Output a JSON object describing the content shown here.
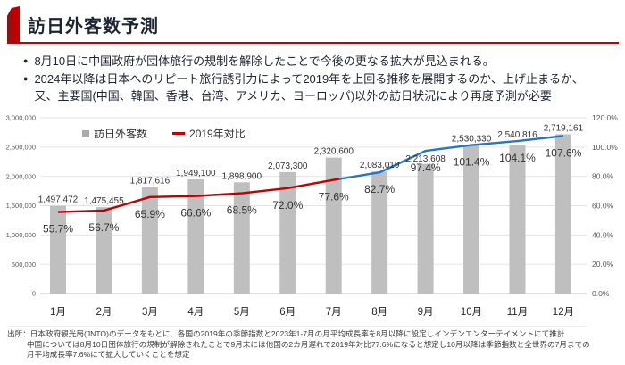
{
  "header": {
    "title": "訪日外客数予測"
  },
  "bullets": [
    {
      "lines": [
        "8月10日に中国政府が団体旅行の規制を解除したことで今後の更なる拡大が見込まれる。"
      ]
    },
    {
      "lines": [
        "2024年以降は日本へのリピート旅行誘引力によって2019年を上回る推移を展開するのか、上げ止まるか、",
        "又、主要国(中国、韓国、香港、台湾、アメリカ、ヨーロッパ)以外の訪日状況により再度予測が必要"
      ]
    }
  ],
  "chart_data": {
    "type": "bar+line",
    "categories": [
      "1月",
      "2月",
      "3月",
      "4月",
      "5月",
      "6月",
      "7月",
      "8月",
      "9月",
      "10月",
      "11月",
      "12月"
    ],
    "series": [
      {
        "name": "訪日外客数",
        "type": "bar",
        "axis": "left",
        "values": [
          1497472,
          1475455,
          1817616,
          1949100,
          1898900,
          2073300,
          2320600,
          2083019,
          2213608,
          2530330,
          2540816,
          2719161
        ]
      },
      {
        "name": "2019年対比",
        "type": "line",
        "axis": "right",
        "values_percent": [
          55.7,
          56.7,
          65.9,
          66.6,
          68.5,
          72.0,
          77.6,
          82.7,
          97.4,
          101.4,
          104.1,
          107.6
        ],
        "color_jan_to_jul": "#c00000",
        "color_aug_to_dec": "#2675c5"
      }
    ],
    "left_axis": {
      "min": 0,
      "max": 3000000,
      "step": 500000,
      "tick_labels": [
        "3,000,000",
        "2,500,000",
        "2,000,000",
        "1,500,000",
        "1,000,000",
        "500,000",
        "0"
      ]
    },
    "right_axis": {
      "min": 0,
      "max": 120,
      "step": 20,
      "tick_labels": [
        "120.0%",
        "100.0%",
        "80.0%",
        "60.0%",
        "40.0%",
        "20.0%",
        "0.0%"
      ]
    },
    "grid": true,
    "legend_position": "top-left"
  },
  "colors": {
    "accent": "#c00000",
    "bar": "#bfbfbf",
    "line_red": "#c00000",
    "line_blue": "#2675c5",
    "grid": "#e4e4e4",
    "baseline": "#c6c6c6",
    "axis_text": "#595959",
    "label_text": "#333333"
  },
  "footnote": {
    "label": "出所：",
    "lines": [
      "日本政府観光局(JNTO)のデータをもとに、各国の2019年の季節指数と2023年1-7月の月平均成長率を8月以降に設定しインデンエンターテイメントにて推計",
      "中国については8月10日団体旅行の規制が解除されたことで9月末には他国の2カ月遅れで2019年対比77.6%になると想定し10月以降は季節指数と全世界の7月までの",
      "月平均成長率7.6%にて拡大していくことを想定"
    ]
  }
}
